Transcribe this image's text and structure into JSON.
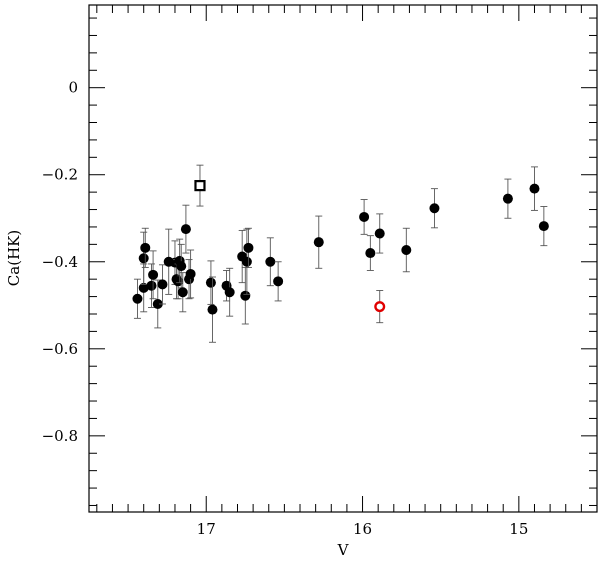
{
  "chart_data": {
    "type": "scatter",
    "xlabel": "V",
    "ylabel": "Ca(HK)",
    "xlim": [
      17.75,
      14.5
    ],
    "ylim": [
      -0.975,
      0.19
    ],
    "x_ticks": [
      17,
      16,
      15
    ],
    "x_tick_labels": [
      "17",
      "16",
      "15"
    ],
    "y_ticks": [
      0,
      -0.2,
      -0.4,
      -0.6,
      -0.8
    ],
    "y_tick_labels": [
      "0",
      "−0.2",
      "−0.4",
      "−0.6",
      "−0.8"
    ],
    "x_minor_step": 0.1,
    "y_minor_step": 0.04,
    "grid": false,
    "legend": "none",
    "series": [
      {
        "marker": "filled-circle",
        "color": "#000000",
        "points": [
          {
            "x": 17.44,
            "y": -0.485,
            "err": 0.045
          },
          {
            "x": 17.4,
            "y": -0.46,
            "err": 0.055
          },
          {
            "x": 17.4,
            "y": -0.392,
            "err": 0.06
          },
          {
            "x": 17.39,
            "y": -0.368,
            "err": 0.045
          },
          {
            "x": 17.35,
            "y": -0.455,
            "err": 0.05
          },
          {
            "x": 17.34,
            "y": -0.43,
            "err": 0.055
          },
          {
            "x": 17.31,
            "y": -0.497,
            "err": 0.055
          },
          {
            "x": 17.28,
            "y": -0.452,
            "err": 0.045
          },
          {
            "x": 17.24,
            "y": -0.4,
            "err": 0.075
          },
          {
            "x": 17.2,
            "y": -0.402,
            "err": 0.05
          },
          {
            "x": 17.19,
            "y": -0.44,
            "err": 0.045
          },
          {
            "x": 17.18,
            "y": -0.445,
            "err": 0.04
          },
          {
            "x": 17.17,
            "y": -0.398,
            "err": 0.05
          },
          {
            "x": 17.16,
            "y": -0.41,
            "err": 0.05
          },
          {
            "x": 17.15,
            "y": -0.47,
            "err": 0.045
          },
          {
            "x": 17.13,
            "y": -0.325,
            "err": 0.055
          },
          {
            "x": 17.11,
            "y": -0.44,
            "err": 0.045
          },
          {
            "x": 17.1,
            "y": -0.428,
            "err": 0.055
          },
          {
            "x": 16.97,
            "y": -0.448,
            "err": 0.05
          },
          {
            "x": 16.96,
            "y": -0.51,
            "err": 0.075
          },
          {
            "x": 16.87,
            "y": -0.455,
            "err": 0.035
          },
          {
            "x": 16.85,
            "y": -0.47,
            "err": 0.055
          },
          {
            "x": 16.77,
            "y": -0.388,
            "err": 0.06
          },
          {
            "x": 16.75,
            "y": -0.478,
            "err": 0.065
          },
          {
            "x": 16.74,
            "y": -0.4,
            "err": 0.075
          },
          {
            "x": 16.73,
            "y": -0.368,
            "err": 0.045
          },
          {
            "x": 16.59,
            "y": -0.4,
            "err": 0.055
          },
          {
            "x": 16.54,
            "y": -0.445,
            "err": 0.045
          },
          {
            "x": 16.28,
            "y": -0.355,
            "err": 0.06
          },
          {
            "x": 15.99,
            "y": -0.297,
            "err": 0.04
          },
          {
            "x": 15.95,
            "y": -0.38,
            "err": 0.04
          },
          {
            "x": 15.89,
            "y": -0.335,
            "err": 0.045
          },
          {
            "x": 15.72,
            "y": -0.373,
            "err": 0.05
          },
          {
            "x": 15.54,
            "y": -0.277,
            "err": 0.045
          },
          {
            "x": 15.07,
            "y": -0.255,
            "err": 0.045
          },
          {
            "x": 14.9,
            "y": -0.232,
            "err": 0.05
          },
          {
            "x": 14.84,
            "y": -0.318,
            "err": 0.045
          }
        ]
      },
      {
        "marker": "open-square",
        "color": "#000000",
        "points": [
          {
            "x": 17.04,
            "y": -0.225,
            "err": 0.047
          }
        ]
      },
      {
        "marker": "open-circle",
        "color": "#e00000",
        "points": [
          {
            "x": 15.89,
            "y": -0.503,
            "err": 0.037
          }
        ]
      }
    ]
  }
}
